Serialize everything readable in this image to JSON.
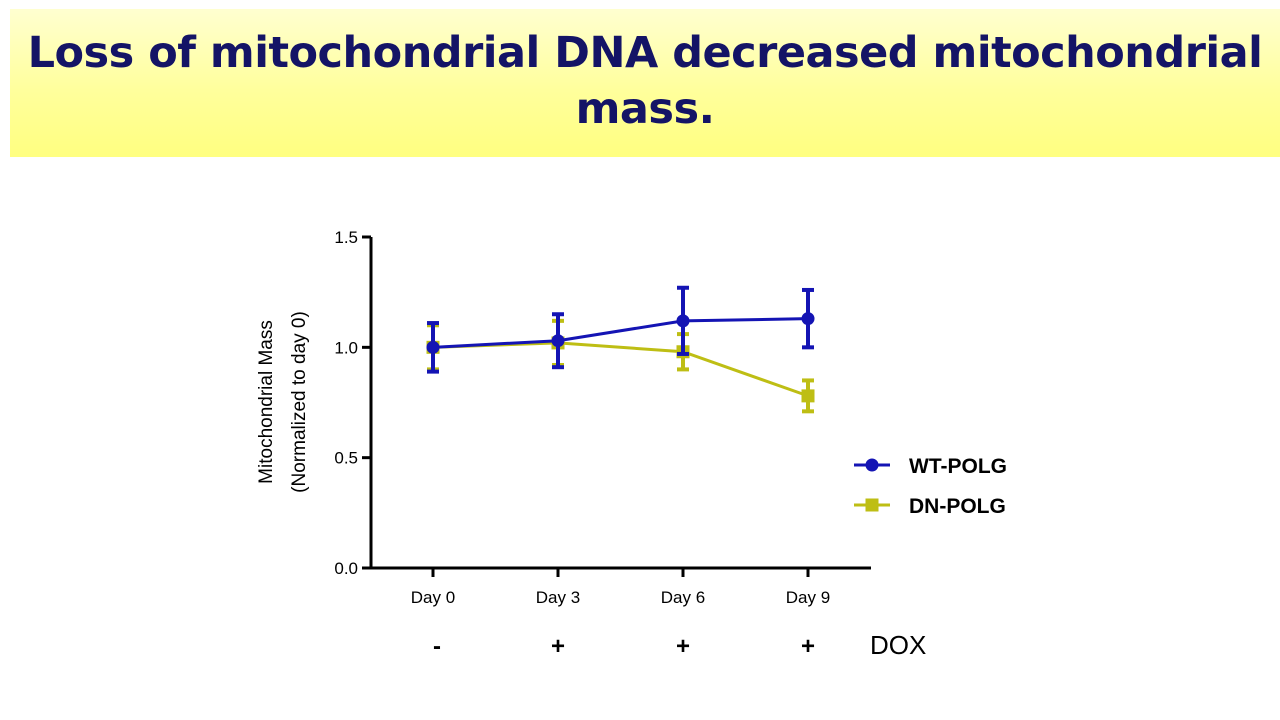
{
  "slide": {
    "title": "Loss of mitochondrial DNA decreased mitochondrial mass."
  },
  "colors": {
    "banner_top": "#ffffd0",
    "banner_bottom": "#ffff80",
    "title_text": "#141466",
    "wt_series": "#1414b4",
    "dn_series": "#bebe14"
  },
  "chart_data": {
    "type": "line",
    "title": "",
    "ylabel_line1": "Mitochondrial Mass",
    "ylabel_line2": "(Normalized to day 0)",
    "xlabel": "",
    "categories": [
      "Day 0",
      "Day 3",
      "Day 6",
      "Day 9"
    ],
    "ylim": [
      0,
      1.5
    ],
    "yticks": [
      "0.0",
      "0.5",
      "1.0",
      "1.5"
    ],
    "ytick_values": [
      0,
      0.5,
      1.0,
      1.5
    ],
    "grid": false,
    "legend_position": "right",
    "treatment": {
      "label": "DOX",
      "signs": [
        "-",
        "+",
        "+",
        "+"
      ]
    },
    "series": [
      {
        "name": "WT-POLG",
        "marker": "circle",
        "color": "#1414b4",
        "values": [
          1.0,
          1.03,
          1.12,
          1.13
        ],
        "error": [
          0.11,
          0.12,
          0.15,
          0.13
        ]
      },
      {
        "name": "DN-POLG",
        "marker": "square",
        "color": "#bebe14",
        "values": [
          1.0,
          1.02,
          0.98,
          0.78
        ],
        "error": [
          0.1,
          0.1,
          0.08,
          0.07
        ]
      }
    ]
  }
}
